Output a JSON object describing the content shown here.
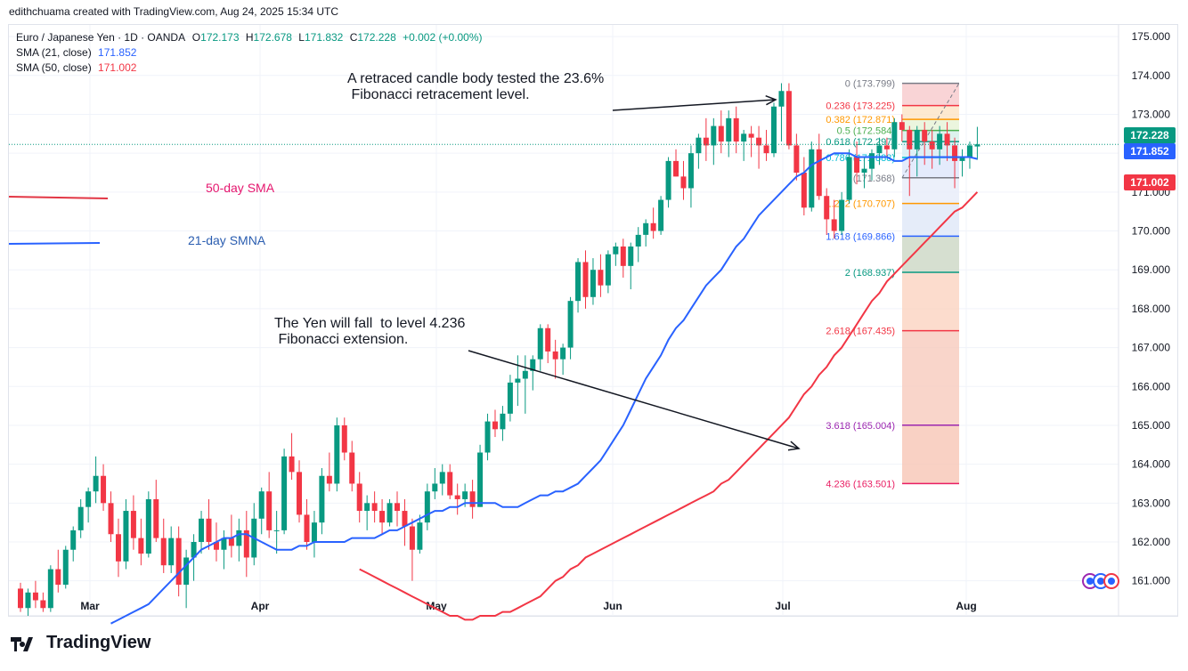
{
  "credit": "edithchuama created with TradingView.com, Aug 24, 2025 15:34 UTC",
  "legend": {
    "symbol": "Euro / Japanese Yen · 1D · OANDA",
    "o_label": "O",
    "o": "172.173",
    "h_label": "H",
    "h": "172.678",
    "l_label": "L",
    "l": "171.832",
    "c_label": "C",
    "c": "172.228",
    "chg": "+0.002 (+0.00%)",
    "sma21_label": "SMA (21, close)",
    "sma21": "171.852",
    "sma50_label": "SMA (50, close)",
    "sma50": "171.002"
  },
  "annotations": {
    "top_note": "A retraced candle body tested the 23.6%\n Fibonacci retracement level.",
    "bottom_note": "The Yen will fall  to level 4.236\n Fibonacci extension.",
    "sma50_label": "50-day SMA",
    "sma21_label": "21-day SMNA"
  },
  "brand": "TradingView",
  "colors": {
    "up": "#089981",
    "down": "#f23645",
    "sma21": "#2962ff",
    "sma50": "#f23645"
  },
  "chart_data": {
    "type": "candlestick",
    "title": "",
    "ylim": [
      160.1,
      175.3
    ],
    "y_ticks": [
      "175.000",
      "174.000",
      "173.000",
      "172.000",
      "171.000",
      "170.000",
      "169.000",
      "168.000",
      "167.000",
      "166.000",
      "165.000",
      "164.000",
      "163.000",
      "162.000",
      "161.000"
    ],
    "x_ticks": [
      "Mar",
      "Apr",
      "May",
      "Jun",
      "Jul",
      "Aug"
    ],
    "price_tags": [
      {
        "value": "172.228",
        "color": "#089981"
      },
      {
        "value": "171.852",
        "color": "#2962ff"
      },
      {
        "value": "171.002",
        "color": "#f23645"
      }
    ],
    "fibonacci": [
      {
        "label": "0 (173.799)",
        "value": 173.799,
        "color": "#787b86"
      },
      {
        "label": "0.236 (173.225)",
        "value": 173.225,
        "color": "#f23645"
      },
      {
        "label": "0.382 (172.871)",
        "value": 172.871,
        "color": "#ff9800"
      },
      {
        "label": "0.5 (172.584)",
        "value": 172.584,
        "color": "#4caf50"
      },
      {
        "label": "0.618 (172.297)",
        "value": 172.297,
        "color": "#089981"
      },
      {
        "label": "0.786 (171.888)",
        "value": 171.888,
        "color": "#00bcd4"
      },
      {
        "label": "(171.368)",
        "value": 171.368,
        "color": "#787b86"
      },
      {
        "label": "1.272 (170.707)",
        "value": 170.707,
        "color": "#ff9800"
      },
      {
        "label": "1.618 (169.866)",
        "value": 169.866,
        "color": "#2962ff"
      },
      {
        "label": "2 (168.937)",
        "value": 168.937,
        "color": "#089981"
      },
      {
        "label": "2.618 (167.435)",
        "value": 167.435,
        "color": "#f23645"
      },
      {
        "label": "3.618 (165.004)",
        "value": 165.004,
        "color": "#9c27b0"
      },
      {
        "label": "4.236 (163.501)",
        "value": 163.501,
        "color": "#e91e63"
      }
    ],
    "candles": [
      [
        160.8,
        160.95,
        160.2,
        160.3
      ],
      [
        160.3,
        160.8,
        160.1,
        160.7
      ],
      [
        160.7,
        161.0,
        160.3,
        160.5
      ],
      [
        160.5,
        160.7,
        160.2,
        160.3
      ],
      [
        160.3,
        161.4,
        160.2,
        161.3
      ],
      [
        161.3,
        161.8,
        160.7,
        160.9
      ],
      [
        160.9,
        161.9,
        160.8,
        161.8
      ],
      [
        161.8,
        162.4,
        161.5,
        162.3
      ],
      [
        162.3,
        163.1,
        162.1,
        162.9
      ],
      [
        162.9,
        163.4,
        162.5,
        163.3
      ],
      [
        163.3,
        164.2,
        163.0,
        163.7
      ],
      [
        163.7,
        164.0,
        162.8,
        163.0
      ],
      [
        163.0,
        163.3,
        162.0,
        162.2
      ],
      [
        162.2,
        162.6,
        161.1,
        161.5
      ],
      [
        161.5,
        163.1,
        161.3,
        162.8
      ],
      [
        162.8,
        163.2,
        161.8,
        162.1
      ],
      [
        162.1,
        162.6,
        161.4,
        161.7
      ],
      [
        161.7,
        163.3,
        161.6,
        163.1
      ],
      [
        163.1,
        163.6,
        162.0,
        162.1
      ],
      [
        162.1,
        162.6,
        161.2,
        161.4
      ],
      [
        161.4,
        162.4,
        161.2,
        162.1
      ],
      [
        162.1,
        162.4,
        160.6,
        160.9
      ],
      [
        160.9,
        161.8,
        160.3,
        161.6
      ],
      [
        161.6,
        162.2,
        161.0,
        162.0
      ],
      [
        162.0,
        162.8,
        161.7,
        162.6
      ],
      [
        162.6,
        163.1,
        161.8,
        162.0
      ],
      [
        162.0,
        162.5,
        161.5,
        161.8
      ],
      [
        161.8,
        162.3,
        161.3,
        162.1
      ],
      [
        162.1,
        162.7,
        161.6,
        161.9
      ],
      [
        161.9,
        162.6,
        161.5,
        162.3
      ],
      [
        162.3,
        162.8,
        161.1,
        161.6
      ],
      [
        161.6,
        163.0,
        161.4,
        162.6
      ],
      [
        162.6,
        163.4,
        162.2,
        163.3
      ],
      [
        163.3,
        163.8,
        162.1,
        162.3
      ],
      [
        162.3,
        162.8,
        161.7,
        162.3
      ],
      [
        162.3,
        164.4,
        162.2,
        164.2
      ],
      [
        164.2,
        164.8,
        163.6,
        163.8
      ],
      [
        163.8,
        164.1,
        162.5,
        162.7
      ],
      [
        162.7,
        163.1,
        161.8,
        162.0
      ],
      [
        162.0,
        162.8,
        161.6,
        162.5
      ],
      [
        162.5,
        163.9,
        162.2,
        163.7
      ],
      [
        163.7,
        164.3,
        163.3,
        163.5
      ],
      [
        163.5,
        165.2,
        163.3,
        165.0
      ],
      [
        165.0,
        165.2,
        164.1,
        164.3
      ],
      [
        164.3,
        164.6,
        163.3,
        163.5
      ],
      [
        163.5,
        163.8,
        162.5,
        162.8
      ],
      [
        162.8,
        163.2,
        162.3,
        163.0
      ],
      [
        163.0,
        163.3,
        162.5,
        162.8
      ],
      [
        162.8,
        163.1,
        162.2,
        162.5
      ],
      [
        162.5,
        163.1,
        162.4,
        163.0
      ],
      [
        163.0,
        163.3,
        162.4,
        162.8
      ],
      [
        162.8,
        163.1,
        161.9,
        162.4
      ],
      [
        162.4,
        162.6,
        161.0,
        161.8
      ],
      [
        161.8,
        162.7,
        161.7,
        162.5
      ],
      [
        162.5,
        163.5,
        162.3,
        163.3
      ],
      [
        163.3,
        163.9,
        163.1,
        163.5
      ],
      [
        163.5,
        164.0,
        163.2,
        163.8
      ],
      [
        163.8,
        164.0,
        163.1,
        163.2
      ],
      [
        163.2,
        163.5,
        162.7,
        163.1
      ],
      [
        163.1,
        163.5,
        162.9,
        163.3
      ],
      [
        163.3,
        163.6,
        162.6,
        162.9
      ],
      [
        162.9,
        164.5,
        162.9,
        164.3
      ],
      [
        164.3,
        165.3,
        164.1,
        165.1
      ],
      [
        165.1,
        165.4,
        164.7,
        164.9
      ],
      [
        164.9,
        165.5,
        164.6,
        165.3
      ],
      [
        165.3,
        166.3,
        165.1,
        166.1
      ],
      [
        166.1,
        166.8,
        165.5,
        166.2
      ],
      [
        166.2,
        166.8,
        165.3,
        166.4
      ],
      [
        166.4,
        166.8,
        165.9,
        166.7
      ],
      [
        166.7,
        167.6,
        166.4,
        167.5
      ],
      [
        167.5,
        167.6,
        166.6,
        166.9
      ],
      [
        166.9,
        167.2,
        166.2,
        166.7
      ],
      [
        166.7,
        167.1,
        166.3,
        167.0
      ],
      [
        167.0,
        168.3,
        166.7,
        168.2
      ],
      [
        168.2,
        169.3,
        167.9,
        169.2
      ],
      [
        169.2,
        169.5,
        168.0,
        168.3
      ],
      [
        168.3,
        169.3,
        168.1,
        169.0
      ],
      [
        169.0,
        169.4,
        168.3,
        168.6
      ],
      [
        168.6,
        169.5,
        168.4,
        169.4
      ],
      [
        169.4,
        169.7,
        169.1,
        169.6
      ],
      [
        169.6,
        169.8,
        168.8,
        169.1
      ],
      [
        169.1,
        169.7,
        168.5,
        169.6
      ],
      [
        169.6,
        170.1,
        169.2,
        169.9
      ],
      [
        169.9,
        170.3,
        169.6,
        170.2
      ],
      [
        170.2,
        170.6,
        169.8,
        170.0
      ],
      [
        170.0,
        170.9,
        169.9,
        170.8
      ],
      [
        170.8,
        171.9,
        170.6,
        171.8
      ],
      [
        171.8,
        172.1,
        171.4,
        171.4
      ],
      [
        171.4,
        171.8,
        170.8,
        171.1
      ],
      [
        171.1,
        172.2,
        170.6,
        172.0
      ],
      [
        172.0,
        172.5,
        171.6,
        172.4
      ],
      [
        172.4,
        172.9,
        171.8,
        172.2
      ],
      [
        172.2,
        172.9,
        171.7,
        172.7
      ],
      [
        172.7,
        173.1,
        172.0,
        172.3
      ],
      [
        172.3,
        173.1,
        171.9,
        172.9
      ],
      [
        172.9,
        173.2,
        172.0,
        172.3
      ],
      [
        172.3,
        172.6,
        171.8,
        172.5
      ],
      [
        172.5,
        172.7,
        171.9,
        172.4
      ],
      [
        172.4,
        172.7,
        171.6,
        172.2
      ],
      [
        172.2,
        172.6,
        171.8,
        172.0
      ],
      [
        172.0,
        173.3,
        171.9,
        173.2
      ],
      [
        173.2,
        173.8,
        172.3,
        173.6
      ],
      [
        173.6,
        173.8,
        172.1,
        172.2
      ],
      [
        172.2,
        172.5,
        171.3,
        171.5
      ],
      [
        171.5,
        171.9,
        170.4,
        170.6
      ],
      [
        170.6,
        172.3,
        170.5,
        172.1
      ],
      [
        172.1,
        172.5,
        170.8,
        170.9
      ],
      [
        170.9,
        171.1,
        169.9,
        170.3
      ],
      [
        170.3,
        170.8,
        169.8,
        170.0
      ],
      [
        170.0,
        171.0,
        169.9,
        170.8
      ],
      [
        170.8,
        172.1,
        170.7,
        171.9
      ],
      [
        171.9,
        172.3,
        171.2,
        171.5
      ],
      [
        171.5,
        171.9,
        171.1,
        171.6
      ],
      [
        171.6,
        172.1,
        171.3,
        172.0
      ],
      [
        172.0,
        172.4,
        171.7,
        172.2
      ],
      [
        172.2,
        172.4,
        171.9,
        172.1
      ],
      [
        172.1,
        172.9,
        171.9,
        172.8
      ],
      [
        172.8,
        173.0,
        172.3,
        172.6
      ],
      [
        172.6,
        172.7,
        170.9,
        172.1
      ],
      [
        172.1,
        172.7,
        171.4,
        172.6
      ],
      [
        172.6,
        172.8,
        171.7,
        172.3
      ],
      [
        172.3,
        172.6,
        171.6,
        172.1
      ],
      [
        172.1,
        172.7,
        171.7,
        172.5
      ],
      [
        172.5,
        172.8,
        171.8,
        172.2
      ],
      [
        172.2,
        172.4,
        171.1,
        171.8
      ],
      [
        171.8,
        172.1,
        171.4,
        171.9
      ],
      [
        171.9,
        172.3,
        171.6,
        172.2
      ],
      [
        172.173,
        172.678,
        171.832,
        172.228
      ]
    ],
    "sma21": [
      159.9,
      160.0,
      160.1,
      160.2,
      160.3,
      160.4,
      160.6,
      160.8,
      161.0,
      161.2,
      161.4,
      161.6,
      161.8,
      161.9,
      162.0,
      162.1,
      162.1,
      162.2,
      162.2,
      162.1,
      162.0,
      161.9,
      161.8,
      161.8,
      161.8,
      161.9,
      161.9,
      162.0,
      162.0,
      162.0,
      162.0,
      162.0,
      162.1,
      162.1,
      162.1,
      162.1,
      162.2,
      162.3,
      162.3,
      162.4,
      162.5,
      162.6,
      162.7,
      162.8,
      162.8,
      162.9,
      162.9,
      163.0,
      163.0,
      163.0,
      163.0,
      163.0,
      162.9,
      162.9,
      162.9,
      163.0,
      163.1,
      163.2,
      163.2,
      163.3,
      163.3,
      163.4,
      163.5,
      163.7,
      163.9,
      164.1,
      164.4,
      164.7,
      165.0,
      165.4,
      165.8,
      166.2,
      166.5,
      166.8,
      167.2,
      167.5,
      167.7,
      168.0,
      168.3,
      168.6,
      168.8,
      169.0,
      169.3,
      169.6,
      169.8,
      170.1,
      170.4,
      170.6,
      170.8,
      171.0,
      171.2,
      171.4,
      171.5,
      171.7,
      171.8,
      171.9,
      172.0,
      172.0,
      172.0,
      171.9,
      171.9,
      171.9,
      171.9,
      171.9,
      171.8,
      171.8,
      171.9,
      171.9,
      171.9,
      171.9,
      171.9,
      171.9,
      171.9,
      171.9,
      171.9,
      171.852
    ],
    "sma50": [
      161.3,
      161.2,
      161.1,
      161.0,
      160.9,
      160.8,
      160.7,
      160.6,
      160.5,
      160.4,
      160.3,
      160.2,
      160.1,
      160.1,
      160.0,
      160.0,
      160.1,
      160.1,
      160.1,
      160.2,
      160.2,
      160.3,
      160.4,
      160.5,
      160.6,
      160.8,
      161.0,
      161.1,
      161.3,
      161.4,
      161.6,
      161.7,
      161.8,
      161.9,
      162.0,
      162.1,
      162.2,
      162.3,
      162.4,
      162.5,
      162.6,
      162.7,
      162.8,
      162.9,
      163.0,
      163.1,
      163.2,
      163.3,
      163.5,
      163.6,
      163.8,
      164.0,
      164.2,
      164.4,
      164.6,
      164.8,
      165.0,
      165.2,
      165.5,
      165.8,
      166.0,
      166.3,
      166.5,
      166.8,
      167.0,
      167.3,
      167.6,
      167.9,
      168.2,
      168.4,
      168.7,
      168.9,
      169.1,
      169.3,
      169.5,
      169.7,
      169.9,
      170.1,
      170.3,
      170.5,
      170.6,
      170.8,
      171.002
    ]
  }
}
